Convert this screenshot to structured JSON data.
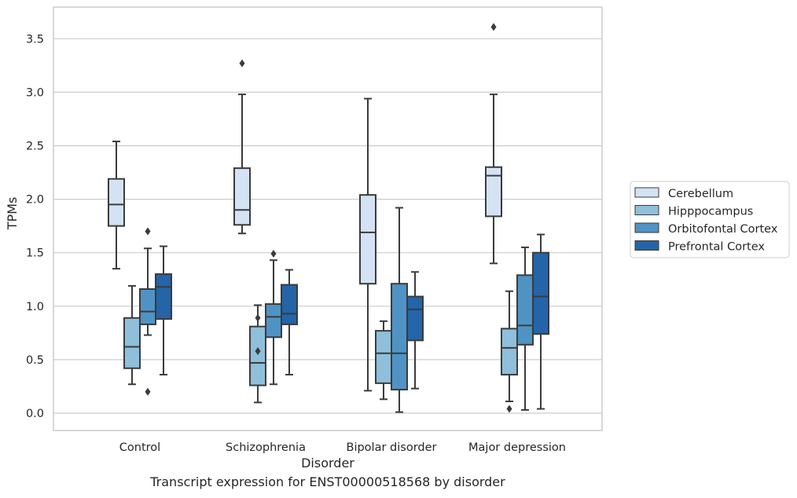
{
  "caption": "Transcript expression for ENST00000518568 by disorder",
  "colors": {
    "Cerebellum": "#d4e3f3",
    "Hipppocampus": "#8fbfdb",
    "Orbitofontal Cortex": "#4f93c5",
    "Prefrontal Cortex": "#2464a8",
    "box_edge": "#3b3b3b",
    "grid": "#cccccc",
    "frame": "#cccccc"
  },
  "chart_data": {
    "type": "box",
    "title": "",
    "xlabel": "Disorder",
    "ylabel": "TPMs",
    "ylim": [
      -0.16,
      3.77
    ],
    "yticks": [
      "0.0",
      "0.5",
      "1.0",
      "1.5",
      "2.0",
      "2.5",
      "3.0",
      "3.5"
    ],
    "grid": true,
    "legend_position": "right",
    "categories": [
      "Control",
      "Schizophrenia",
      "Bipolar disorder",
      "Major depression"
    ],
    "series": [
      {
        "name": "Cerebellum",
        "boxes": [
          {
            "whislo": 1.35,
            "q1": 1.75,
            "med": 1.95,
            "q3": 2.19,
            "whishi": 2.54,
            "fliers": []
          },
          {
            "whislo": 1.68,
            "q1": 1.76,
            "med": 1.9,
            "q3": 2.29,
            "whishi": 2.98,
            "fliers": [
              3.27
            ]
          },
          {
            "whislo": 0.21,
            "q1": 1.21,
            "med": 1.69,
            "q3": 2.04,
            "whishi": 2.94,
            "fliers": []
          },
          {
            "whislo": 1.4,
            "q1": 1.84,
            "med": 2.22,
            "q3": 2.3,
            "whishi": 2.98,
            "fliers": [
              3.61
            ]
          }
        ]
      },
      {
        "name": "Hipppocampus",
        "boxes": [
          {
            "whislo": 0.27,
            "q1": 0.42,
            "med": 0.62,
            "q3": 0.89,
            "whishi": 1.19,
            "fliers": []
          },
          {
            "whislo": 0.1,
            "q1": 0.26,
            "med": 0.47,
            "q3": 0.81,
            "whishi": 1.01,
            "fliers": [
              0.89,
              0.58
            ]
          },
          {
            "whislo": 0.13,
            "q1": 0.28,
            "med": 0.56,
            "q3": 0.77,
            "whishi": 0.86,
            "fliers": []
          },
          {
            "whislo": 0.11,
            "q1": 0.36,
            "med": 0.61,
            "q3": 0.79,
            "whishi": 1.14,
            "fliers": [
              0.04
            ]
          }
        ]
      },
      {
        "name": "Orbitofontal Cortex",
        "boxes": [
          {
            "whislo": 0.73,
            "q1": 0.83,
            "med": 0.95,
            "q3": 1.16,
            "whishi": 1.54,
            "fliers": [
              1.7,
              0.2
            ]
          },
          {
            "whislo": 0.27,
            "q1": 0.71,
            "med": 0.9,
            "q3": 1.02,
            "whishi": 1.43,
            "fliers": [
              1.49
            ]
          },
          {
            "whislo": 0.01,
            "q1": 0.22,
            "med": 0.56,
            "q3": 1.21,
            "whishi": 1.92,
            "fliers": []
          },
          {
            "whislo": 0.03,
            "q1": 0.64,
            "med": 0.82,
            "q3": 1.29,
            "whishi": 1.55,
            "fliers": []
          }
        ]
      },
      {
        "name": "Prefrontal Cortex",
        "boxes": [
          {
            "whislo": 0.36,
            "q1": 0.88,
            "med": 1.18,
            "q3": 1.3,
            "whishi": 1.56,
            "fliers": []
          },
          {
            "whislo": 0.36,
            "q1": 0.83,
            "med": 0.93,
            "q3": 1.2,
            "whishi": 1.34,
            "fliers": []
          },
          {
            "whislo": 0.23,
            "q1": 0.68,
            "med": 0.97,
            "q3": 1.09,
            "whishi": 1.32,
            "fliers": []
          },
          {
            "whislo": 0.04,
            "q1": 0.74,
            "med": 1.09,
            "q3": 1.5,
            "whishi": 1.67,
            "fliers": []
          }
        ]
      }
    ]
  }
}
